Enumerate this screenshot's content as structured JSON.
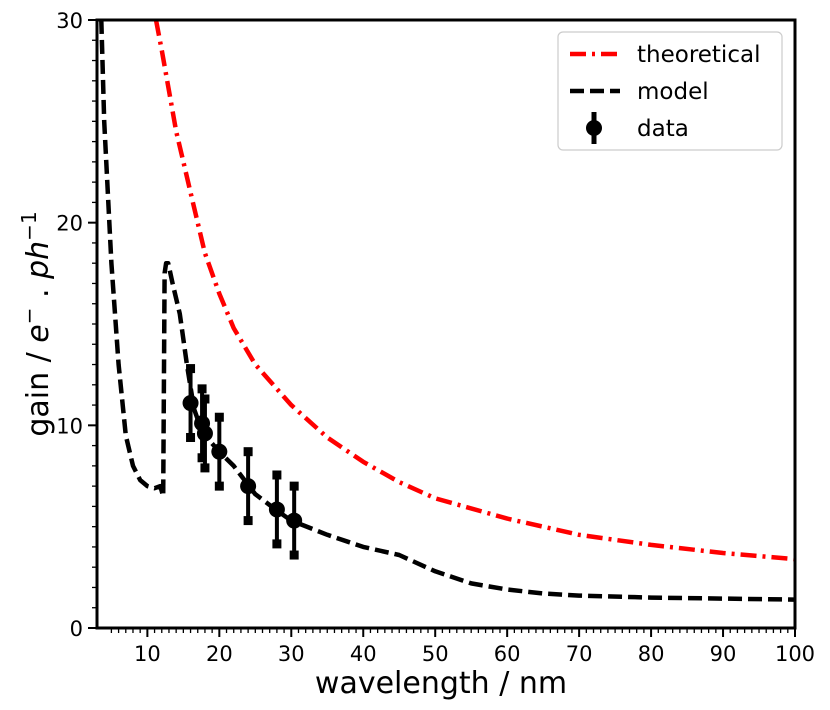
{
  "chart_data": {
    "type": "line",
    "title": "",
    "xlabel": "wavelength / nm",
    "ylabel_parts": [
      "gain / ",
      "e",
      "−",
      " . ",
      "ph",
      "−1"
    ],
    "xlim": [
      3,
      100
    ],
    "ylim": [
      0,
      30
    ],
    "xticks": [
      10,
      20,
      30,
      40,
      50,
      60,
      70,
      80,
      90,
      100
    ],
    "yticks": [
      0,
      10,
      20,
      30
    ],
    "grid": false,
    "legend_position": "top-right",
    "series": [
      {
        "name": "theoretical",
        "style": "dash-dot",
        "color": "#ff0000",
        "x": [
          11.2,
          12,
          13,
          14,
          15,
          16,
          17,
          18,
          20,
          22,
          25,
          28,
          30,
          35,
          40,
          45,
          50,
          60,
          70,
          80,
          90,
          100
        ],
        "y": [
          30,
          28.5,
          26.5,
          24.5,
          23,
          21.5,
          20,
          18.5,
          16.5,
          14.8,
          13,
          11.8,
          11,
          9.4,
          8.2,
          7.2,
          6.4,
          5.4,
          4.6,
          4.1,
          3.7,
          3.4
        ]
      },
      {
        "name": "model",
        "style": "dashed",
        "color": "#000000",
        "x": [
          3.6,
          4,
          5,
          6,
          7,
          8,
          9,
          10,
          11,
          11.8,
          12.2,
          12.4,
          12.6,
          12.9,
          13.5,
          14.5,
          15.5,
          16.5,
          17.5,
          18.5,
          20,
          22,
          25,
          28,
          30,
          35,
          40,
          45,
          50,
          55,
          60,
          65,
          70,
          80,
          90,
          100
        ],
        "y": [
          30,
          25,
          18,
          13,
          9.5,
          8,
          7.3,
          7,
          6.9,
          7,
          6.5,
          17.5,
          18,
          18,
          17,
          15.5,
          13,
          10.8,
          9.8,
          9.3,
          8.7,
          8,
          6.6,
          5.8,
          5.3,
          4.6,
          4,
          3.6,
          2.8,
          2.2,
          1.9,
          1.7,
          1.6,
          1.5,
          1.45,
          1.4
        ]
      }
    ],
    "data": {
      "name": "data",
      "color": "#000000",
      "x": [
        16,
        17.6,
        18,
        20,
        24,
        28,
        30.4
      ],
      "y": [
        11.1,
        10.1,
        9.6,
        8.7,
        7.0,
        5.85,
        5.3
      ],
      "yerr": [
        1.7,
        1.7,
        1.7,
        1.7,
        1.7,
        1.7,
        1.7
      ]
    }
  }
}
